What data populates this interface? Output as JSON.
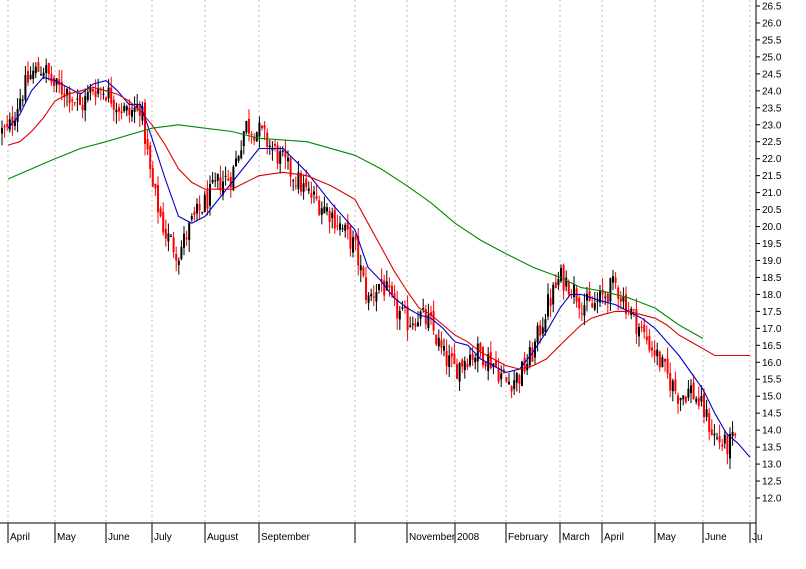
{
  "chart_data": {
    "type": "line",
    "subtype": "candlestick-with-moving-averages",
    "title": "",
    "xlabel": "",
    "ylabel": "",
    "ylim": [
      12.0,
      26.5
    ],
    "y_ticks": [
      12.0,
      12.5,
      13.0,
      13.5,
      14.0,
      14.5,
      15.0,
      15.5,
      16.0,
      16.5,
      17.0,
      17.5,
      18.0,
      18.5,
      19.0,
      19.5,
      20.0,
      20.5,
      21.0,
      21.5,
      22.0,
      22.5,
      23.0,
      23.5,
      24.0,
      24.5,
      25.0,
      25.5,
      26.0,
      26.5
    ],
    "y_axis_side": "right",
    "grid": {
      "vertical_dotted": true,
      "horizontal": false
    },
    "legend": "none",
    "x_tick_labels": [
      "April",
      "May",
      "June",
      "July",
      "August",
      "September",
      "",
      "November",
      "2008",
      "February",
      "March",
      "April",
      "May",
      "June",
      "Ju"
    ],
    "colors": {
      "up_candle": "#000000",
      "down_candle": "#ff0000",
      "ma_short": "#0000cc",
      "ma_medium": "#dd0000",
      "ma_long": "#008800",
      "grid": "#bbbbbb"
    },
    "series": [
      {
        "key": "price_close",
        "color": "#000000",
        "x": [
          0,
          0.25,
          0.5,
          0.75,
          1,
          1.25,
          1.5,
          1.75,
          2,
          2.25,
          2.5,
          2.75,
          3,
          3.25,
          3.5,
          3.75,
          4,
          4.25,
          4.5,
          4.75,
          5,
          5.25,
          5.5,
          5.75,
          6,
          6.25,
          6.5,
          6.75,
          7,
          7.25,
          7.5,
          7.75,
          8,
          8.25,
          8.5,
          8.75,
          9,
          9.25,
          9.5,
          9.75,
          10,
          10.25,
          10.5,
          10.75,
          11,
          11.25,
          11.5,
          11.75,
          12,
          12.25,
          12.5,
          12.75,
          13,
          13.25,
          13.5,
          13.75,
          14
        ],
        "values": [
          22.8,
          23.8,
          24.5,
          24.7,
          24.1,
          24.0,
          23.5,
          24.1,
          24.0,
          23.6,
          23.3,
          23.6,
          21.2,
          19.8,
          19.2,
          20.1,
          20.7,
          21.3,
          21.5,
          23.0,
          22.8,
          21.9,
          21.0,
          20.4,
          19.4,
          17.8,
          18.4,
          17.6,
          17.2,
          17.4,
          17.1,
          16.2,
          15.8,
          16.2,
          16.3,
          16.0,
          15.4,
          15.6,
          16.3,
          17.6,
          18.5,
          18.3,
          17.8,
          17.6,
          17.9,
          18.3,
          17.6,
          16.9,
          16.3,
          15.6,
          15.0,
          15.2,
          14.6,
          13.8,
          13.5,
          13.8,
          12.5
        ]
      },
      {
        "key": "ma_short",
        "color": "#0000cc",
        "x": [
          0,
          0.25,
          0.5,
          0.75,
          1,
          1.25,
          1.5,
          1.75,
          2,
          2.25,
          2.5,
          2.75,
          3,
          3.25,
          3.5,
          3.75,
          4,
          4.25,
          4.5,
          4.75,
          5,
          5.25,
          5.5,
          5.75,
          6,
          6.25,
          6.5,
          6.75,
          7,
          7.25,
          7.5,
          7.75,
          8,
          8.25,
          8.5,
          8.75,
          9,
          9.25,
          9.5,
          9.75,
          10,
          10.25,
          10.5,
          10.75,
          11,
          11.25,
          11.5,
          11.75,
          12,
          12.25,
          12.5,
          12.75,
          13,
          13.25,
          13.5,
          13.75,
          14
        ],
        "values": [
          22.9,
          23.3,
          24.0,
          24.4,
          24.3,
          24.1,
          23.9,
          24.2,
          24.3,
          24.0,
          23.6,
          23.6,
          22.6,
          21.4,
          20.3,
          20.1,
          20.3,
          20.8,
          21.3,
          21.8,
          22.3,
          22.3,
          21.6,
          20.7,
          19.9,
          18.8,
          18.4,
          17.9,
          17.6,
          17.4,
          17.3,
          17.0,
          16.6,
          16.5,
          16.1,
          15.9,
          15.7,
          15.8,
          16.3,
          16.9,
          17.6,
          18.0,
          18.0,
          17.9,
          17.8,
          17.7,
          17.5,
          17.3,
          17.0,
          16.6,
          16.2,
          15.7,
          15.2,
          14.5,
          13.9,
          13.6,
          13.2
        ]
      },
      {
        "key": "ma_medium",
        "color": "#dd0000",
        "x": [
          0,
          0.25,
          0.5,
          0.75,
          1,
          1.25,
          1.5,
          1.75,
          2,
          2.25,
          2.5,
          2.75,
          3,
          3.25,
          3.5,
          3.75,
          4,
          4.25,
          4.5,
          4.75,
          5,
          5.25,
          5.5,
          5.75,
          6,
          6.25,
          6.5,
          6.75,
          7,
          7.25,
          7.5,
          7.75,
          8,
          8.25,
          8.5,
          8.75,
          9,
          9.25,
          9.5,
          9.75,
          10,
          10.25,
          10.5,
          10.75,
          11,
          11.25,
          11.5,
          11.75,
          12,
          12.25,
          12.5,
          12.75,
          13,
          13.25,
          13.5,
          13.75,
          14
        ],
        "values": [
          22.4,
          22.5,
          22.8,
          23.2,
          23.7,
          23.9,
          24.0,
          24.1,
          24.0,
          23.9,
          23.7,
          23.4,
          23.0,
          22.4,
          21.7,
          21.3,
          21.1,
          21.1,
          21.1,
          21.3,
          21.5,
          21.6,
          21.5,
          21.2,
          20.8,
          20.1,
          19.4,
          18.7,
          18.1,
          17.6,
          17.4,
          17.1,
          16.8,
          16.6,
          16.3,
          16.1,
          15.9,
          15.8,
          15.9,
          16.1,
          16.5,
          16.8,
          17.1,
          17.3,
          17.4,
          17.5,
          17.5,
          17.4,
          17.3,
          17.1,
          16.8,
          16.6,
          16.4,
          16.2,
          16.2,
          16.2,
          16.2
        ]
      },
      {
        "key": "ma_long",
        "color": "#008800",
        "x": [
          0,
          0.5,
          1,
          1.5,
          2,
          2.5,
          3,
          3.5,
          4,
          4.5,
          5,
          5.5,
          6,
          6.5,
          7,
          7.5,
          8,
          8.5,
          9,
          9.5,
          10,
          10.5,
          11,
          11.5,
          12,
          12.5,
          13
        ],
        "values": [
          21.4,
          21.7,
          22.0,
          22.3,
          22.5,
          22.7,
          22.9,
          23.0,
          22.9,
          22.8,
          22.6,
          22.5,
          22.1,
          21.7,
          21.2,
          20.7,
          20.1,
          19.6,
          19.2,
          18.8,
          18.5,
          18.2,
          18.1,
          17.9,
          17.6,
          17.1,
          16.7
        ]
      }
    ]
  }
}
